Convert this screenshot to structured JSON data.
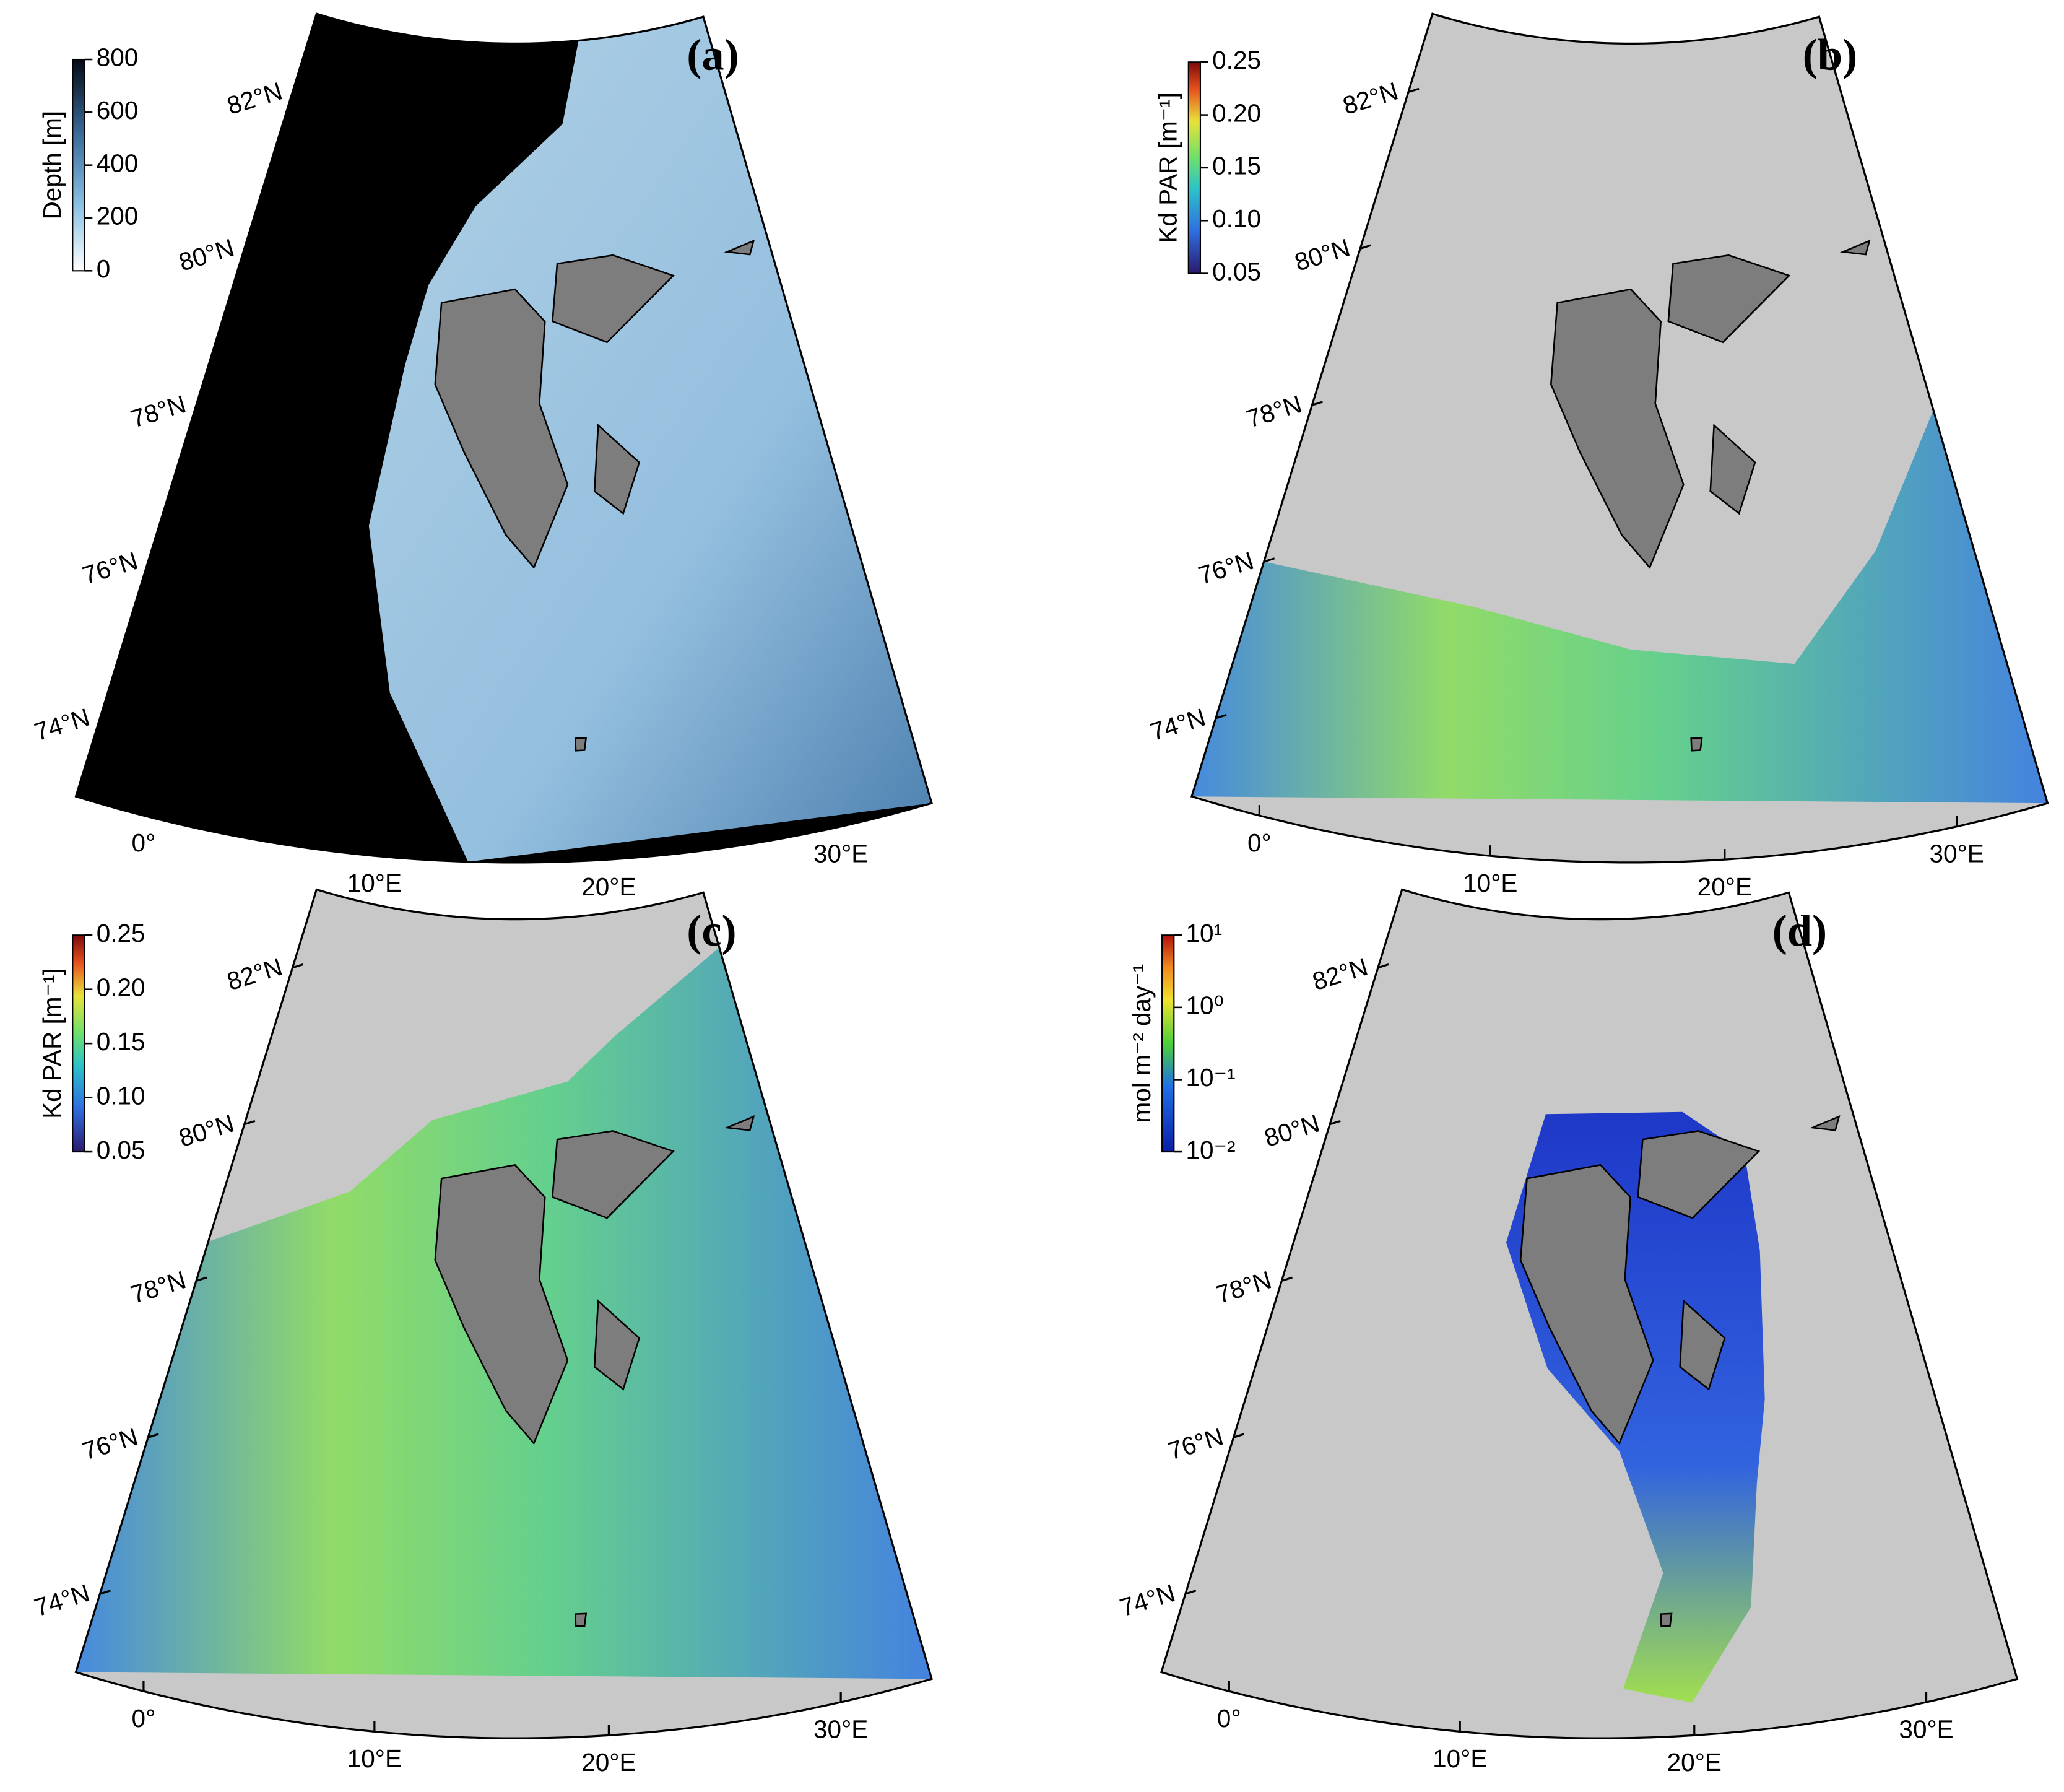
{
  "map": {
    "latlim": [
      73,
      83
    ],
    "lonlim": [
      -3,
      34
    ]
  },
  "chart_data": [
    {
      "type": "map",
      "label": "(a)",
      "colorbar": {
        "label": "Depth [m]",
        "lim": [
          0,
          800
        ],
        "ticks": [
          0,
          200,
          400,
          600,
          800
        ],
        "log": false
      },
      "lat_ticks": [
        {
          "value": 74,
          "label": "74°N"
        },
        {
          "value": 76,
          "label": "76°N"
        },
        {
          "value": 78,
          "label": "78°N"
        },
        {
          "value": 80,
          "label": "80°N"
        },
        {
          "value": 82,
          "label": "82°N"
        }
      ],
      "lon_ticks": [
        {
          "value": 0,
          "label": "0°"
        },
        {
          "value": 10,
          "label": "10°E"
        },
        {
          "value": 20,
          "label": "20°E"
        },
        {
          "value": 30,
          "label": "30°E"
        }
      ]
    },
    {
      "type": "map",
      "label": "(b)",
      "colorbar": {
        "label": "Kd PAR [m⁻¹]",
        "lim": [
          0.05,
          0.25
        ],
        "ticks": [
          {
            "value": 0.05,
            "label": "0.05"
          },
          {
            "value": 0.1,
            "label": "0.10"
          },
          {
            "value": 0.15,
            "label": "0.15"
          },
          {
            "value": 0.2,
            "label": "0.20"
          },
          {
            "value": 0.25,
            "label": "0.25"
          }
        ],
        "log": false
      },
      "lat_ticks": [
        {
          "value": 74,
          "label": "74°N"
        },
        {
          "value": 76,
          "label": "76°N"
        },
        {
          "value": 78,
          "label": "78°N"
        },
        {
          "value": 80,
          "label": "80°N"
        },
        {
          "value": 82,
          "label": "82°N"
        }
      ],
      "lon_ticks": [
        {
          "value": 0,
          "label": "0°"
        },
        {
          "value": 10,
          "label": "10°E"
        },
        {
          "value": 20,
          "label": "20°E"
        },
        {
          "value": 30,
          "label": "30°E"
        }
      ]
    },
    {
      "type": "map",
      "label": "(c)",
      "colorbar": {
        "label": "Kd PAR [m⁻¹]",
        "lim": [
          0.05,
          0.25
        ],
        "ticks": [
          {
            "value": 0.05,
            "label": "0.05"
          },
          {
            "value": 0.1,
            "label": "0.10"
          },
          {
            "value": 0.15,
            "label": "0.15"
          },
          {
            "value": 0.2,
            "label": "0.20"
          },
          {
            "value": 0.25,
            "label": "0.25"
          }
        ],
        "log": false
      },
      "lat_ticks": [
        {
          "value": 74,
          "label": "74°N"
        },
        {
          "value": 76,
          "label": "76°N"
        },
        {
          "value": 78,
          "label": "78°N"
        },
        {
          "value": 80,
          "label": "80°N"
        },
        {
          "value": 82,
          "label": "82°N"
        }
      ],
      "lon_ticks": [
        {
          "value": 0,
          "label": "0°"
        },
        {
          "value": 10,
          "label": "10°E"
        },
        {
          "value": 20,
          "label": "20°E"
        },
        {
          "value": 30,
          "label": "30°E"
        }
      ]
    },
    {
      "type": "map",
      "label": "(d)",
      "colorbar": {
        "label": "mol m⁻² day⁻¹",
        "lim": [
          0.01,
          10
        ],
        "ticks": [
          {
            "value": 0.01,
            "label": "10⁻²"
          },
          {
            "value": 0.1,
            "label": "10⁻¹"
          },
          {
            "value": 1,
            "label": "10⁰"
          },
          {
            "value": 10,
            "label": "10¹"
          }
        ],
        "log": true
      },
      "lat_ticks": [
        {
          "value": 74,
          "label": "74°N"
        },
        {
          "value": 76,
          "label": "76°N"
        },
        {
          "value": 78,
          "label": "78°N"
        },
        {
          "value": 80,
          "label": "80°N"
        },
        {
          "value": 82,
          "label": "82°N"
        }
      ],
      "lon_ticks": [
        {
          "value": 0,
          "label": "0°"
        },
        {
          "value": 10,
          "label": "10°E"
        },
        {
          "value": 20,
          "label": "20°E"
        },
        {
          "value": 30,
          "label": "30°E"
        }
      ]
    }
  ]
}
